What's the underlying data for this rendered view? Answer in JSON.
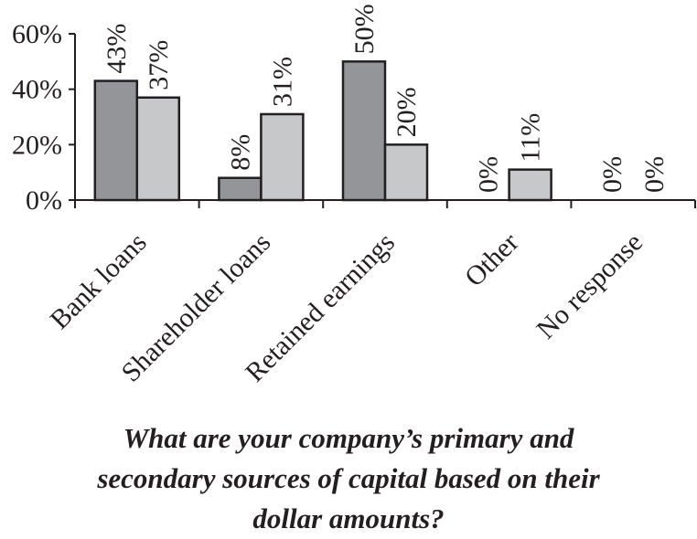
{
  "chart_data": {
    "type": "bar",
    "categories": [
      "Bank loans",
      "Shareholder loans",
      "Retained earnings",
      "Other",
      "No response"
    ],
    "series": [
      {
        "values": [
          43,
          8,
          50,
          0,
          0
        ],
        "labels": [
          "43%",
          "8%",
          "50%",
          "0%",
          "0%"
        ],
        "color": "#939598"
      },
      {
        "values": [
          37,
          31,
          20,
          11,
          0
        ],
        "labels": [
          "37%",
          "31%",
          "20%",
          "11%",
          "0%"
        ],
        "color": "#c7c8ca"
      }
    ],
    "ylim": [
      0,
      60
    ],
    "yticks": [
      "0%",
      "20%",
      "40%",
      "60%"
    ],
    "ytick_values": [
      0,
      20,
      40,
      60
    ],
    "grid": false,
    "legend": "none"
  },
  "caption": {
    "lines": [
      "What are your company’s primary and",
      "secondary sources of capital based on their",
      "dollar amounts?"
    ]
  }
}
